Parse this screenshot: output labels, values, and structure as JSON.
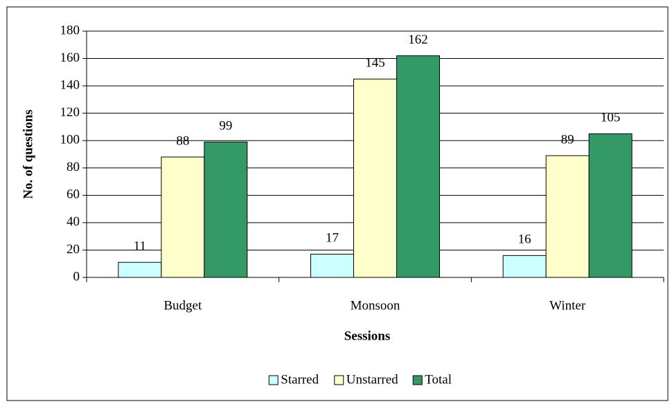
{
  "chart_data": {
    "type": "bar",
    "x_label": "Sessions",
    "y_label": "No. of questions",
    "categories": [
      "Budget",
      "Monsoon",
      "Winter"
    ],
    "series": [
      {
        "name": "Starred",
        "color": "#ccffff",
        "values": [
          11,
          17,
          16
        ]
      },
      {
        "name": "Unstarred",
        "color": "#ffffcc",
        "values": [
          88,
          145,
          89
        ]
      },
      {
        "name": "Total",
        "color": "#339966",
        "values": [
          99,
          162,
          105
        ]
      }
    ],
    "ylim": [
      0,
      180
    ],
    "yticks": [
      0,
      20,
      40,
      60,
      80,
      100,
      120,
      140,
      160,
      180
    ],
    "grid": true,
    "legend": "bottom"
  }
}
